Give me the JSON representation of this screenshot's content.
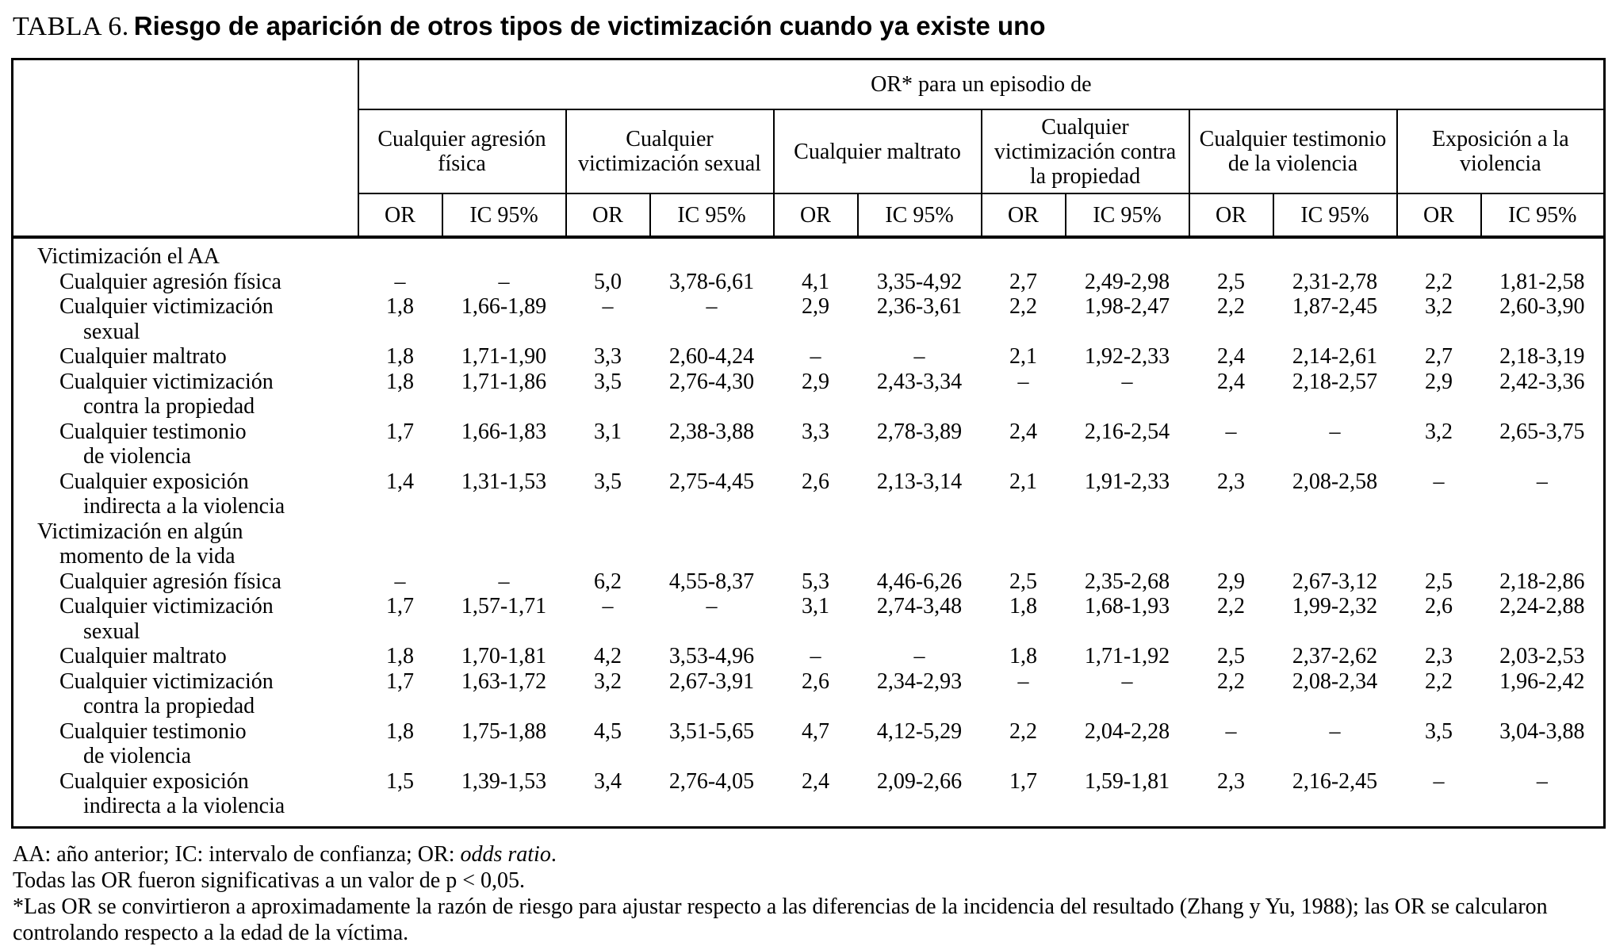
{
  "title": {
    "prefix": "TABLA 6.",
    "main": "Riesgo de aparición de otros tipos de victimización cuando ya existe uno"
  },
  "colors": {
    "background": "#ffffff",
    "text": "#000000",
    "border": "#000000"
  },
  "header": {
    "top": "OR* para un episodio de",
    "groups": [
      "Cualquier agresión física",
      "Cualquier victimización sexual",
      "Cualquier maltrato",
      "Cualquier victimización contra la propiedad",
      "Cualquier testimonio de la violencia",
      "Exposición a la violencia"
    ],
    "or": "OR",
    "ic": "IC 95%"
  },
  "rows": [
    {
      "type": "section",
      "l1": "Victimización el AA",
      "l2": "",
      "v": [
        "",
        "",
        "",
        "",
        "",
        "",
        "",
        "",
        "",
        "",
        "",
        ""
      ]
    },
    {
      "type": "item",
      "l1": "Cualquier agresión física",
      "l2": "",
      "v": [
        "–",
        "–",
        "5,0",
        "3,78-6,61",
        "4,1",
        "3,35-4,92",
        "2,7",
        "2,49-2,98",
        "2,5",
        "2,31-2,78",
        "2,2",
        "1,81-2,58"
      ]
    },
    {
      "type": "item",
      "l1": "Cualquier victimización",
      "l2": "sexual",
      "v": [
        "1,8",
        "1,66-1,89",
        "–",
        "–",
        "2,9",
        "2,36-3,61",
        "2,2",
        "1,98-2,47",
        "2,2",
        "1,87-2,45",
        "3,2",
        "2,60-3,90"
      ]
    },
    {
      "type": "item",
      "l1": "Cualquier maltrato",
      "l2": "",
      "v": [
        "1,8",
        "1,71-1,90",
        "3,3",
        "2,60-4,24",
        "–",
        "–",
        "2,1",
        "1,92-2,33",
        "2,4",
        "2,14-2,61",
        "2,7",
        "2,18-3,19"
      ]
    },
    {
      "type": "item",
      "l1": "Cualquier victimización",
      "l2": "contra la propiedad",
      "v": [
        "1,8",
        "1,71-1,86",
        "3,5",
        "2,76-4,30",
        "2,9",
        "2,43-3,34",
        "–",
        "–",
        "2,4",
        "2,18-2,57",
        "2,9",
        "2,42-3,36"
      ]
    },
    {
      "type": "item",
      "l1": "Cualquier testimonio",
      "l2": "de violencia",
      "v": [
        "1,7",
        "1,66-1,83",
        "3,1",
        "2,38-3,88",
        "3,3",
        "2,78-3,89",
        "2,4",
        "2,16-2,54",
        "–",
        "–",
        "3,2",
        "2,65-3,75"
      ]
    },
    {
      "type": "item",
      "l1": "Cualquier exposición",
      "l2": "indirecta a la violencia",
      "v": [
        "1,4",
        "1,31-1,53",
        "3,5",
        "2,75-4,45",
        "2,6",
        "2,13-3,14",
        "2,1",
        "1,91-2,33",
        "2,3",
        "2,08-2,58",
        "–",
        "–"
      ]
    },
    {
      "type": "section",
      "l1": "Victimización en algún",
      "l2": "momento de la vida",
      "v": [
        "",
        "",
        "",
        "",
        "",
        "",
        "",
        "",
        "",
        "",
        "",
        ""
      ]
    },
    {
      "type": "item",
      "l1": "Cualquier agresión física",
      "l2": "",
      "v": [
        "–",
        "–",
        "6,2",
        "4,55-8,37",
        "5,3",
        "4,46-6,26",
        "2,5",
        "2,35-2,68",
        "2,9",
        "2,67-3,12",
        "2,5",
        "2,18-2,86"
      ]
    },
    {
      "type": "item",
      "l1": "Cualquier victimización",
      "l2": "sexual",
      "v": [
        "1,7",
        "1,57-1,71",
        "–",
        "–",
        "3,1",
        "2,74-3,48",
        "1,8",
        "1,68-1,93",
        "2,2",
        "1,99-2,32",
        "2,6",
        "2,24-2,88"
      ]
    },
    {
      "type": "item",
      "l1": "Cualquier maltrato",
      "l2": "",
      "v": [
        "1,8",
        "1,70-1,81",
        "4,2",
        "3,53-4,96",
        "–",
        "–",
        "1,8",
        "1,71-1,92",
        "2,5",
        "2,37-2,62",
        "2,3",
        "2,03-2,53"
      ]
    },
    {
      "type": "item",
      "l1": "Cualquier victimización",
      "l2": "contra la propiedad",
      "v": [
        "1,7",
        "1,63-1,72",
        "3,2",
        "2,67-3,91",
        "2,6",
        "2,34-2,93",
        "–",
        "–",
        "2,2",
        "2,08-2,34",
        "2,2",
        "1,96-2,42"
      ]
    },
    {
      "type": "item",
      "l1": "Cualquier testimonio",
      "l2": "de violencia",
      "v": [
        "1,8",
        "1,75-1,88",
        "4,5",
        "3,51-5,65",
        "4,7",
        "4,12-5,29",
        "2,2",
        "2,04-2,28",
        "–",
        "–",
        "3,5",
        "3,04-3,88"
      ]
    },
    {
      "type": "item",
      "l1": "Cualquier exposición",
      "l2": "indirecta a la violencia",
      "v": [
        "1,5",
        "1,39-1,53",
        "3,4",
        "2,76-4,05",
        "2,4",
        "2,09-2,66",
        "1,7",
        "1,59-1,81",
        "2,3",
        "2,16-2,45",
        "–",
        "–"
      ]
    }
  ],
  "footnotes": {
    "abbr_prefix": "AA: año anterior; IC: intervalo de confianza; OR: ",
    "abbr_italic": "odds ratio",
    "abbr_suffix": ".",
    "significance": "Todas las OR fueron significativas a un valor de p < 0,05.",
    "asterisk": "*Las OR se convirtieron a aproximadamente la razón de riesgo para ajustar respecto a las diferencias de la incidencia del resultado (Zhang y Yu, 1988); las OR se calcularon controlando respecto a la edad de la víctima."
  }
}
